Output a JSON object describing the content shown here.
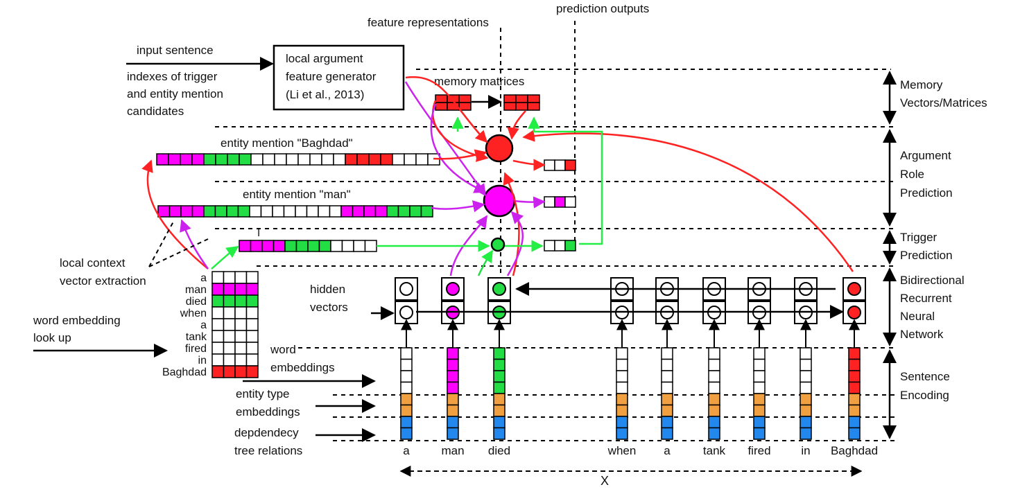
{
  "top_labels": {
    "feature_representations": "feature representations",
    "prediction_outputs": "prediction outputs"
  },
  "input": {
    "input_sentence": "input sentence",
    "indexes_line1": "indexes of trigger",
    "indexes_line2": "and entity mention",
    "indexes_line3": "candidates"
  },
  "generator": {
    "line1": "local argument",
    "line2": "feature generator",
    "line3": "(Li et al., 2013)"
  },
  "memory": {
    "label": "memory matrices"
  },
  "entity_vectors": {
    "baghdad_label": "entity mention \"Baghdad\"",
    "man_label": "entity mention \"man\""
  },
  "cursor_glyph": "I",
  "left_labels": {
    "local_context_line1": "local context",
    "local_context_line2": "vector extraction",
    "word_embedding_line1": "word embedding",
    "word_embedding_line2": "look up",
    "hidden_line1": "hidden",
    "hidden_line2": "vectors",
    "word_emb_line1": "word",
    "word_emb_line2": "embeddings",
    "entity_type_line1": "entity type",
    "entity_type_line2": "embeddings",
    "dep_line1": "depdendecy",
    "dep_line2": "tree relations"
  },
  "lookup_words": [
    "a",
    "man",
    "died",
    "when",
    "a",
    "tank",
    "fired",
    "in",
    "Baghdad"
  ],
  "sentence_words": [
    "a",
    "man",
    "died",
    "when",
    "a",
    "tank",
    "fired",
    "in",
    "Baghdad"
  ],
  "x_label": "X",
  "sections": {
    "memory": [
      "Memory",
      "Vectors/Matrices"
    ],
    "argument": [
      "Argument",
      "Role",
      "Prediction"
    ],
    "trigger": [
      "Trigger",
      "Prediction"
    ],
    "rnn": [
      "Bidirectional",
      "Recurrent",
      "Neural",
      "Network"
    ],
    "encoding": [
      "Sentence",
      "Encoding"
    ]
  },
  "colors": {
    "argument": "#ff2222",
    "entity_man": "#ff00ff",
    "trigger": "#22dd44",
    "entity_type": "#f0a040",
    "dependency": "#2288ee",
    "memory_green_arrow": "#22ee44",
    "ink": "#000000"
  }
}
